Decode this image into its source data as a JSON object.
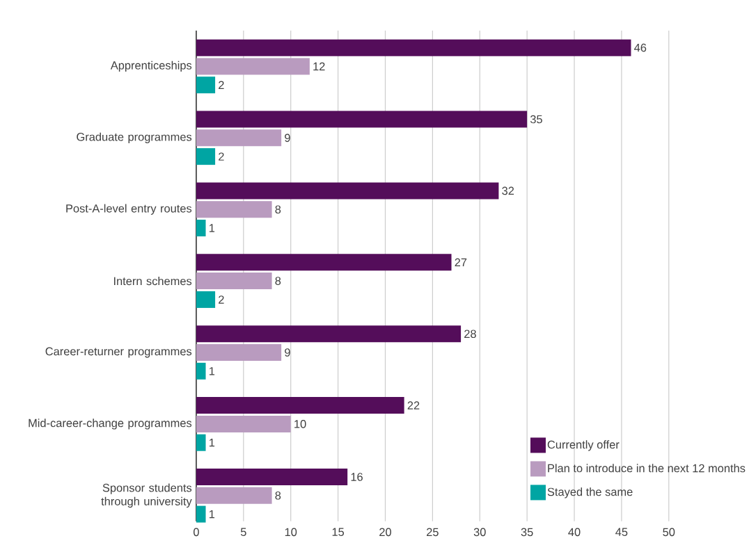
{
  "chart_data": {
    "type": "bar",
    "orientation": "horizontal",
    "categories": [
      "Apprenticeships",
      "Graduate programmes",
      "Post-A-level entry routes",
      "Intern schemes",
      "Career-returner programmes",
      "Mid-career-change programmes",
      "Sponsor students through university"
    ],
    "series": [
      {
        "name": "Currently offer",
        "color": "#540d5a",
        "values": [
          46,
          35,
          32,
          27,
          28,
          22,
          16
        ]
      },
      {
        "name": "Plan to introduce in the next 12 months",
        "color": "#b99bbf",
        "values": [
          12,
          9,
          8,
          8,
          9,
          10,
          8
        ]
      },
      {
        "name": "Stayed the same",
        "color": "#00a5a3",
        "values": [
          2,
          2,
          1,
          2,
          1,
          1,
          1
        ]
      }
    ],
    "xlim": [
      0,
      50
    ],
    "xticks": [
      0,
      5,
      10,
      15,
      20,
      25,
      30,
      35,
      40,
      45,
      50
    ],
    "grid": "x",
    "legend": "bottom right",
    "data_labels": true
  }
}
